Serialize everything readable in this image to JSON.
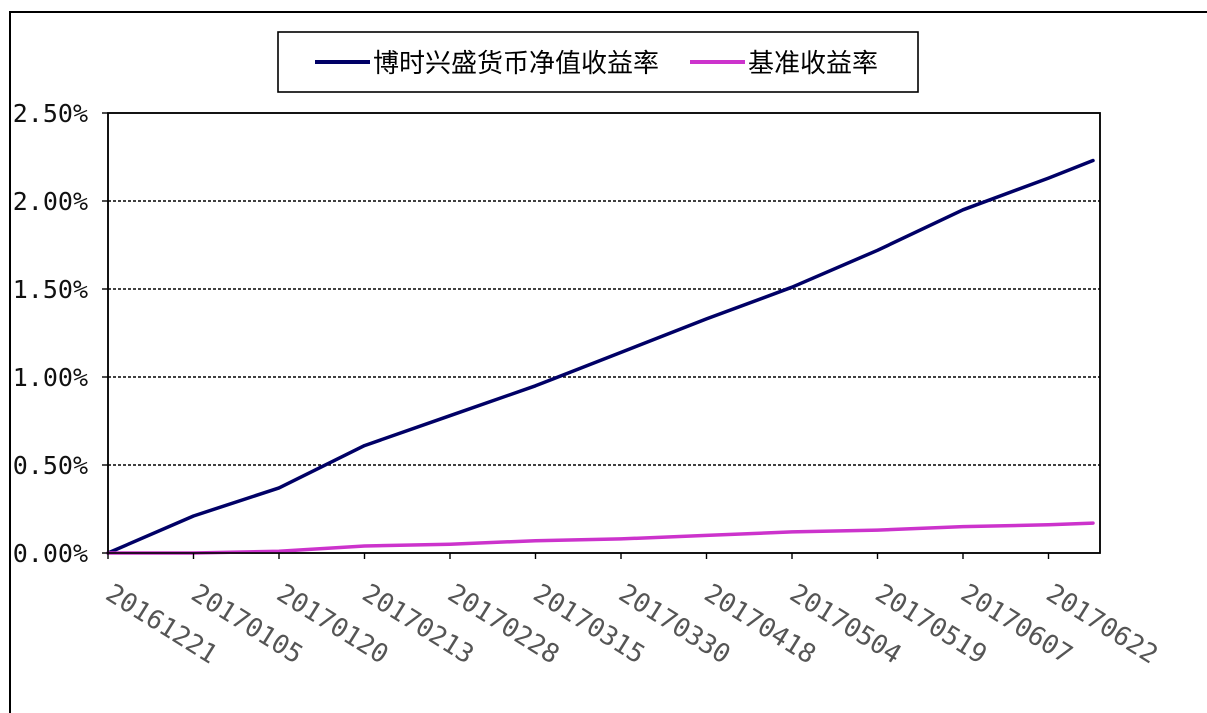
{
  "chart_data": {
    "type": "line",
    "categories": [
      "20161221",
      "20170105",
      "20170120",
      "20170213",
      "20170228",
      "20170315",
      "20170330",
      "20170418",
      "20170504",
      "20170519",
      "20170607",
      "20170622"
    ],
    "series": [
      {
        "name": "博时兴盛货币净值收益率",
        "color": "#000066",
        "values": [
          0.0,
          0.21,
          0.37,
          0.61,
          0.78,
          0.95,
          1.14,
          1.33,
          1.51,
          1.72,
          1.95,
          2.13
        ],
        "end_value": 2.23
      },
      {
        "name": "基准收益率",
        "color": "#cc33cc",
        "values": [
          0.0,
          0.0,
          0.01,
          0.04,
          0.05,
          0.07,
          0.08,
          0.1,
          0.12,
          0.13,
          0.15,
          0.16
        ],
        "end_value": 0.17
      }
    ],
    "y_ticks": [
      "0.00%",
      "0.50%",
      "1.00%",
      "1.50%",
      "2.00%",
      "2.50%"
    ],
    "ylim": [
      0,
      2.5
    ],
    "grid": true,
    "legend": "top"
  }
}
